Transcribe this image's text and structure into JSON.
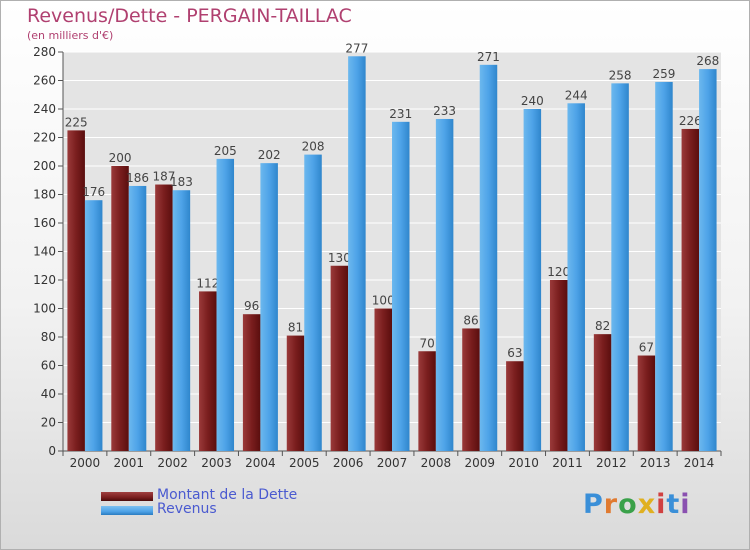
{
  "title": "Revenus/Dette - PERGAIN-TAILLAC",
  "subtitle": "(en milliers d'€)",
  "legend": {
    "debt_label": "Montant de la Dette",
    "revenue_label": "Revenus"
  },
  "logo": {
    "text": "Proxiti",
    "letter_colors": [
      "#3a8fd8",
      "#e07a30",
      "#3aa14a",
      "#e0b020",
      "#d04040",
      "#3a8fd8",
      "#8a50b0"
    ]
  },
  "colors": {
    "debt": "#7a1e1e",
    "revenue": "#4ea3e8"
  },
  "chart_data": {
    "type": "bar",
    "categories": [
      "2000",
      "2001",
      "2002",
      "2003",
      "2004",
      "2005",
      "2006",
      "2007",
      "2008",
      "2009",
      "2010",
      "2011",
      "2012",
      "2013",
      "2014"
    ],
    "series": [
      {
        "name": "Montant de la Dette",
        "values": [
          225,
          200,
          187,
          112,
          96,
          81,
          130,
          100,
          70,
          86,
          63,
          120,
          82,
          67,
          226
        ]
      },
      {
        "name": "Revenus",
        "values": [
          176,
          186,
          183,
          205,
          202,
          208,
          277,
          231,
          233,
          271,
          240,
          244,
          258,
          259,
          268
        ]
      }
    ],
    "yticks": [
      "0",
      "20",
      "40",
      "60",
      "80",
      "100",
      "120",
      "140",
      "160",
      "180",
      "200",
      "220",
      "240",
      "260",
      "280"
    ],
    "ylim": [
      0,
      280
    ],
    "grid": true,
    "legend_position": "bottom-left"
  }
}
